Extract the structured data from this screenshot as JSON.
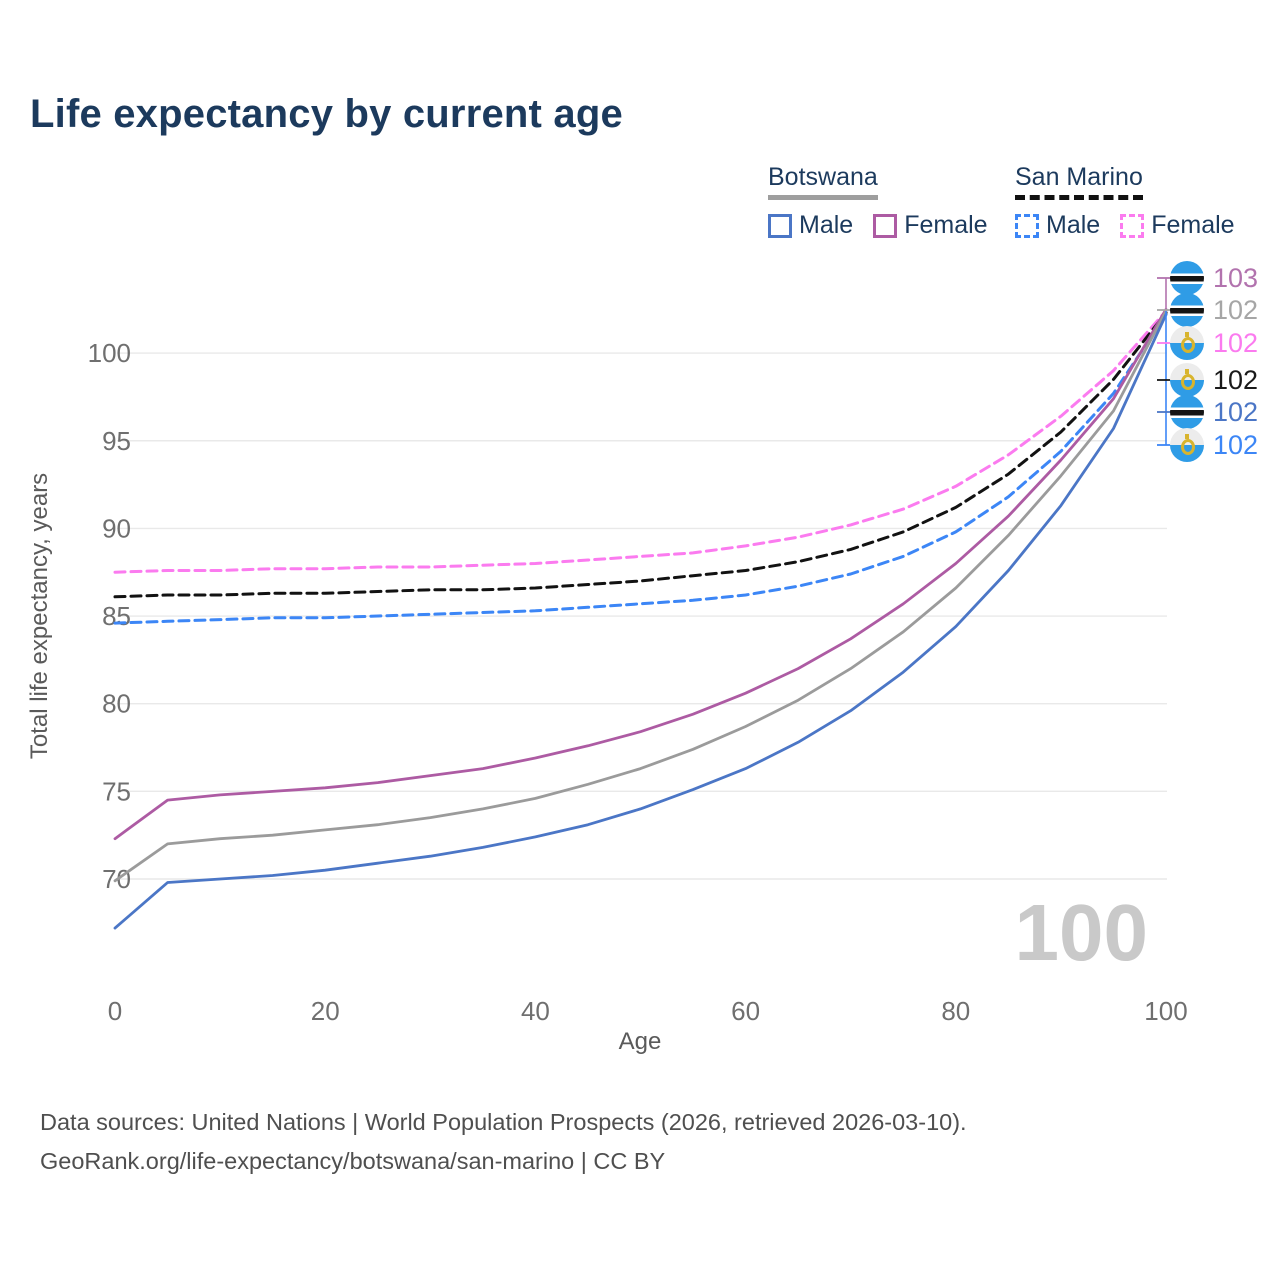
{
  "title": "Life expectancy by current age",
  "watermark": "100",
  "legend": {
    "groups": [
      {
        "country": "Botswana",
        "style": "solid",
        "items": [
          {
            "label": "Male",
            "color": "#4b76c6"
          },
          {
            "label": "Female",
            "color": "#ad5ba3"
          }
        ]
      },
      {
        "country": "San Marino",
        "style": "dashed",
        "items": [
          {
            "label": "Male",
            "color": "#3c86f6"
          },
          {
            "label": "Female",
            "color": "#fb7bef"
          }
        ]
      }
    ]
  },
  "chart_data": {
    "type": "line",
    "title": "Life expectancy by current age",
    "xlabel": "Age",
    "ylabel": "Total life expectancy, years",
    "xticks": [
      0,
      20,
      40,
      60,
      80,
      100
    ],
    "yticks": [
      70,
      75,
      80,
      85,
      90,
      95,
      100
    ],
    "xlim": [
      0,
      100
    ],
    "ylim": [
      66,
      104
    ],
    "grid": "horizontal",
    "x": [
      0,
      5,
      10,
      15,
      20,
      25,
      30,
      35,
      40,
      45,
      50,
      55,
      60,
      65,
      70,
      75,
      80,
      85,
      90,
      95,
      100
    ],
    "series": [
      {
        "name": "San Marino Female",
        "country": "San Marino",
        "sex": "Female",
        "dash": true,
        "color": "#fb7bef",
        "values": [
          87.5,
          87.6,
          87.6,
          87.7,
          87.7,
          87.8,
          87.8,
          87.9,
          88.0,
          88.2,
          88.4,
          88.6,
          89.0,
          89.5,
          90.2,
          91.1,
          92.4,
          94.2,
          96.4,
          99.0,
          102.4
        ]
      },
      {
        "name": "San Marino Total",
        "country": "San Marino",
        "sex": "Total",
        "dash": true,
        "color": "#121212",
        "values": [
          86.1,
          86.2,
          86.2,
          86.3,
          86.3,
          86.4,
          86.5,
          86.5,
          86.6,
          86.8,
          87.0,
          87.3,
          87.6,
          88.1,
          88.8,
          89.8,
          91.2,
          93.1,
          95.5,
          98.5,
          102.3
        ]
      },
      {
        "name": "San Marino Male",
        "country": "San Marino",
        "sex": "Male",
        "dash": true,
        "color": "#3c86f6",
        "values": [
          84.6,
          84.7,
          84.8,
          84.9,
          84.9,
          85.0,
          85.1,
          85.2,
          85.3,
          85.5,
          85.7,
          85.9,
          86.2,
          86.7,
          87.4,
          88.4,
          89.8,
          91.8,
          94.4,
          97.7,
          102.2
        ]
      },
      {
        "name": "Botswana Female",
        "country": "Botswana",
        "sex": "Female",
        "dash": false,
        "color": "#ad5ba3",
        "values": [
          72.3,
          74.5,
          74.8,
          75.0,
          75.2,
          75.5,
          75.9,
          76.3,
          76.9,
          77.6,
          78.4,
          79.4,
          80.6,
          82.0,
          83.7,
          85.7,
          88.0,
          90.7,
          93.9,
          97.4,
          102.5
        ]
      },
      {
        "name": "Botswana Total",
        "country": "Botswana",
        "sex": "Total",
        "dash": false,
        "color": "#9b9b9b",
        "values": [
          69.9,
          72.0,
          72.3,
          72.5,
          72.8,
          73.1,
          73.5,
          74.0,
          74.6,
          75.4,
          76.3,
          77.4,
          78.7,
          80.2,
          82.0,
          84.1,
          86.6,
          89.6,
          93.0,
          96.7,
          102.4
        ]
      },
      {
        "name": "Botswana Male",
        "country": "Botswana",
        "sex": "Male",
        "dash": false,
        "color": "#4b76c6",
        "values": [
          67.2,
          69.8,
          70.0,
          70.2,
          70.5,
          70.9,
          71.3,
          71.8,
          72.4,
          73.1,
          74.0,
          75.1,
          76.3,
          77.8,
          79.6,
          81.8,
          84.4,
          87.6,
          91.3,
          95.7,
          102.2
        ]
      }
    ]
  },
  "end_labels": [
    {
      "flag": "botswana",
      "series": "Botswana Female",
      "value": "103",
      "color": "#b273ae"
    },
    {
      "flag": "botswana",
      "series": "Botswana Total",
      "value": "102",
      "color": "#a6a6a6"
    },
    {
      "flag": "san-marino",
      "series": "San Marino Female",
      "value": "102",
      "color": "#fb7bef"
    },
    {
      "flag": "san-marino",
      "series": "San Marino Total",
      "value": "102",
      "color": "#1a1a1a"
    },
    {
      "flag": "botswana",
      "series": "Botswana Male",
      "value": "102",
      "color": "#4b76c6"
    },
    {
      "flag": "san-marino",
      "series": "San Marino Male",
      "value": "102",
      "color": "#3c86f6"
    }
  ],
  "footer": {
    "line1": "Data sources: United Nations | World Population Prospects (2026, retrieved 2026-03-10).",
    "line2": "GeoRank.org/life-expectancy/botswana/san-marino | CC BY"
  }
}
